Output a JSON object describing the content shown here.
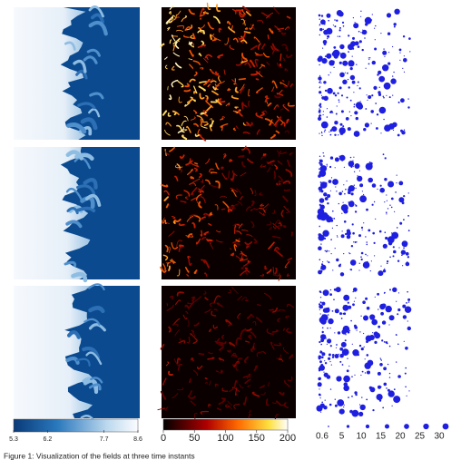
{
  "figure": {
    "colorbar_scalar": {
      "lim": [
        5.3,
        8.6
      ],
      "ticks": [
        5.3,
        6.2,
        7.7,
        8.6
      ]
    },
    "colorbar_magnitude": {
      "lim": [
        0,
        200
      ],
      "ticks": [
        0,
        50,
        100,
        150,
        200
      ]
    },
    "size_legend": [
      0.6,
      5,
      10,
      15,
      20,
      25,
      30
    ],
    "caption": "Figure 1: Visualization of the fields at three time instants"
  }
}
